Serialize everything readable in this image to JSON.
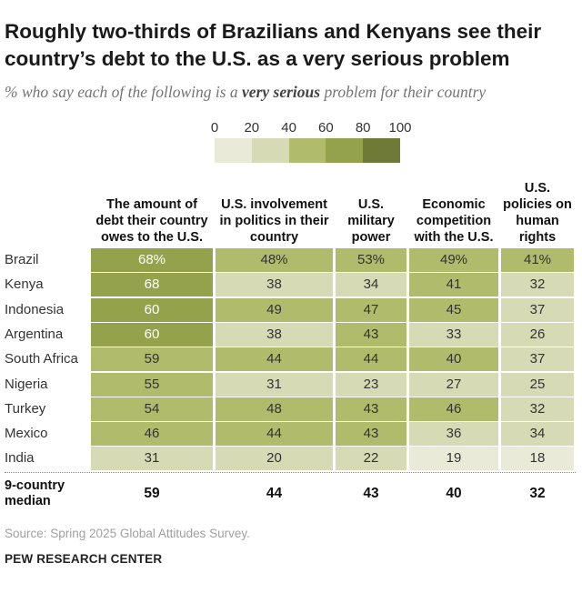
{
  "title": "Roughly two-thirds of Brazilians and Kenyans see their country’s debt to the U.S. as a very serious problem",
  "subtitle": {
    "before": "% who say each of the following is a ",
    "emphasis": "very serious",
    "after": " problem for their country"
  },
  "legend": {
    "ticks": [
      "0",
      "20",
      "40",
      "60",
      "80",
      "100"
    ],
    "colors": [
      "#e9ebd8",
      "#d6dab5",
      "#b1bb6c",
      "#95a24c",
      "#6f7a37"
    ]
  },
  "chart_data": {
    "type": "table",
    "columns": [
      "The amount of debt their country owes to the U.S.",
      "U.S. involvement in politics in their country",
      "U.S. military power",
      "Economic competition with the U.S.",
      "U.S. policies on human rights"
    ],
    "rows": [
      {
        "country": "Brazil",
        "values": [
          68,
          48,
          53,
          49,
          41
        ],
        "labels": [
          "68%",
          "48%",
          "53%",
          "49%",
          "41%"
        ]
      },
      {
        "country": "Kenya",
        "values": [
          68,
          38,
          34,
          41,
          32
        ],
        "labels": [
          "68",
          "38",
          "34",
          "41",
          "32"
        ]
      },
      {
        "country": "Indonesia",
        "values": [
          60,
          49,
          47,
          45,
          37
        ],
        "labels": [
          "60",
          "49",
          "47",
          "45",
          "37"
        ]
      },
      {
        "country": "Argentina",
        "values": [
          60,
          38,
          43,
          33,
          26
        ],
        "labels": [
          "60",
          "38",
          "43",
          "33",
          "26"
        ]
      },
      {
        "country": "South Africa",
        "values": [
          59,
          44,
          44,
          40,
          37
        ],
        "labels": [
          "59",
          "44",
          "44",
          "40",
          "37"
        ]
      },
      {
        "country": "Nigeria",
        "values": [
          55,
          31,
          23,
          27,
          25
        ],
        "labels": [
          "55",
          "31",
          "23",
          "27",
          "25"
        ]
      },
      {
        "country": "Turkey",
        "values": [
          54,
          48,
          43,
          46,
          32
        ],
        "labels": [
          "54",
          "48",
          "43",
          "46",
          "32"
        ]
      },
      {
        "country": "Mexico",
        "values": [
          46,
          44,
          43,
          36,
          34
        ],
        "labels": [
          "46",
          "44",
          "43",
          "36",
          "34"
        ]
      },
      {
        "country": "India",
        "values": [
          31,
          20,
          22,
          19,
          18
        ],
        "labels": [
          "31",
          "20",
          "22",
          "19",
          "18"
        ]
      }
    ],
    "median": {
      "label": "9-country median",
      "values": [
        "59",
        "44",
        "43",
        "40",
        "32"
      ]
    },
    "scale": [
      0,
      100
    ]
  },
  "source": "Source: Spring 2025 Global Attitudes Survey.",
  "credit": "PEW RESEARCH CENTER"
}
